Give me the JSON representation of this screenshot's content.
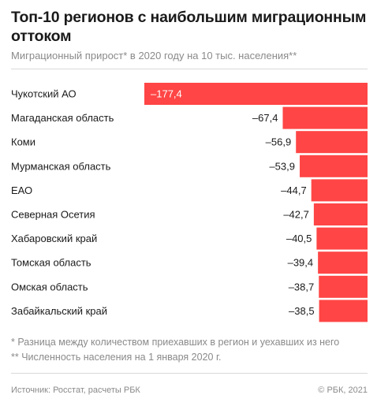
{
  "chart_data": {
    "type": "bar",
    "orientation": "horizontal",
    "title": "Топ-10 регионов с наибольшим миграционным оттоком",
    "subtitle": "Миграционный прирост* в 2020 году на 10 тыс. населения**",
    "categories": [
      "Чукотский АО",
      "Магаданская область",
      "Коми",
      "Мурманская область",
      "ЕАО",
      "Северная Осетия",
      "Хабаровский край",
      "Томская область",
      "Омская область",
      "Забайкальский край"
    ],
    "values": [
      -177.4,
      -67.4,
      -56.9,
      -53.9,
      -44.7,
      -42.7,
      -40.5,
      -39.4,
      -38.7,
      -38.5
    ],
    "value_labels": [
      "–177,4",
      "–67,4",
      "–56,9",
      "–53,9",
      "–44,7",
      "–42,7",
      "–40,5",
      "–39,4",
      "–38,7",
      "–38,5"
    ],
    "bar_color": "#ff4545",
    "grid": false
  },
  "footnotes": [
    "* Разница между количеством приехавших в регион и уехавших из него",
    "** Численность населения на 1 января 2020 г."
  ],
  "source": "Источник: Росстат, расчеты РБК",
  "copyright": "© РБК, 2021"
}
